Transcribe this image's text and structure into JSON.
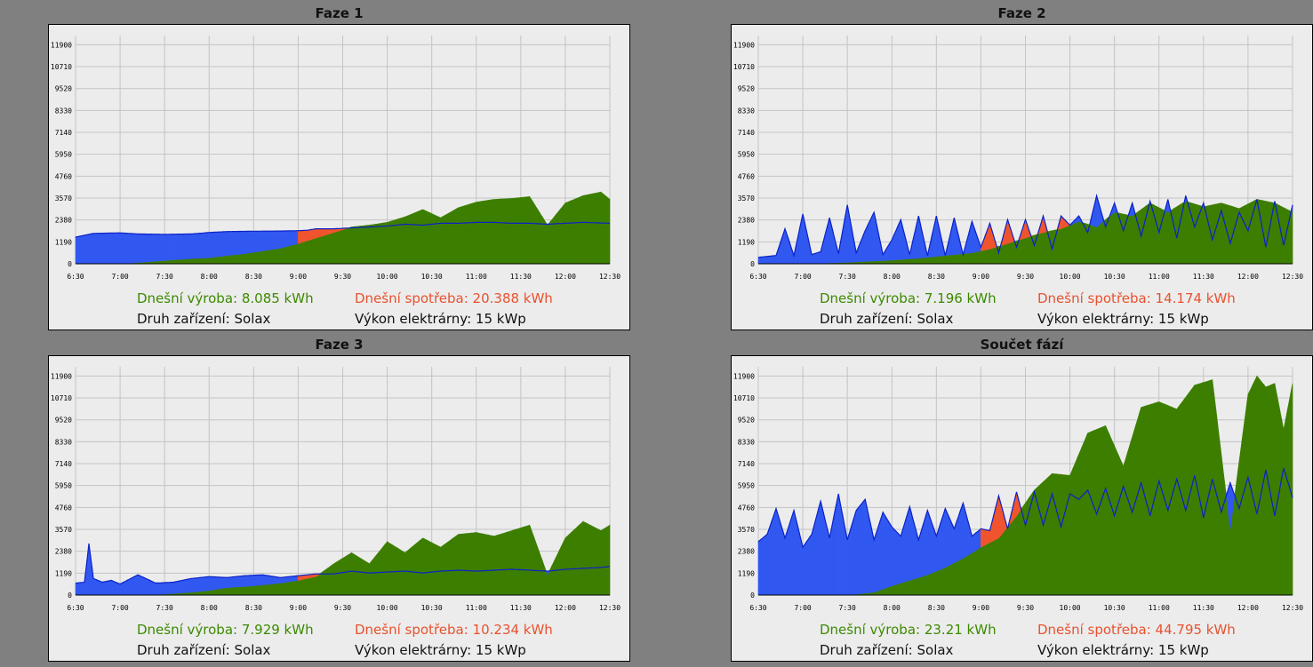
{
  "colors": {
    "production": "#3d7e00",
    "consumption": "#f0542e",
    "grid": "#3158f0",
    "consumption_line": "#d41400",
    "grid_line": "#0b22c8"
  },
  "panels": [
    {
      "title": "Faze 1",
      "production_label": "Dnešní výroba: 8.085 kWh",
      "consumption_label": "Dnešní spotřeba: 20.388 kWh",
      "device_label": "Druh zařízení: Solax",
      "power_label": "Výkon elektrárny: 15 kWp"
    },
    {
      "title": "Faze 2",
      "production_label": "Dnešní výroba: 7.196 kWh",
      "consumption_label": "Dnešní spotřeba: 14.174 kWh",
      "device_label": "Druh zařízení: Solax",
      "power_label": "Výkon elektrárny: 15 kWp"
    },
    {
      "title": "Faze 3",
      "production_label": "Dnešní výroba: 7.929 kWh",
      "consumption_label": "Dnešní spotřeba: 10.234 kWh",
      "device_label": "Druh zařízení: Solax",
      "power_label": "Výkon elektrárny: 15 kWp"
    },
    {
      "title": "Součet fází",
      "production_label": "Dnešní výroba: 23.21 kWh",
      "consumption_label": "Dnešní spotřeba: 44.795 kWh",
      "device_label": "Druh zařízení: Solax",
      "power_label": "Výkon elektrárny: 15 kWp"
    }
  ],
  "chart_data": [
    {
      "type": "area",
      "x_ticks": [
        "6:30",
        "7:00",
        "7:30",
        "8:00",
        "8:30",
        "9:00",
        "9:30",
        "10:00",
        "10:30",
        "11:00",
        "11:30",
        "12:00",
        "12:30"
      ],
      "y_ticks": [
        0,
        1190,
        2380,
        3570,
        4760,
        5950,
        7140,
        8330,
        9520,
        10710,
        11900
      ],
      "ylim": [
        0,
        12400
      ],
      "x_range_hours": [
        6.5,
        12.5
      ],
      "series": [
        {
          "role": "consumption",
          "x": [
            6.5,
            6.7,
            7.0,
            7.2,
            7.5,
            7.8,
            8.0,
            8.2,
            8.5,
            8.8,
            9.0,
            9.1,
            9.2,
            9.4,
            9.6,
            9.8,
            10.0,
            10.2,
            10.4,
            10.6,
            10.8,
            11.0,
            11.2,
            11.4,
            11.6,
            11.8,
            12.0,
            12.2,
            12.5
          ],
          "y": [
            1450,
            1650,
            1680,
            1620,
            1600,
            1620,
            1700,
            1750,
            1770,
            1780,
            1800,
            1820,
            1900,
            1900,
            1950,
            2000,
            2050,
            2150,
            2100,
            2200,
            2200,
            2250,
            2250,
            2200,
            2200,
            2150,
            2200,
            2250,
            2200
          ]
        },
        {
          "role": "production",
          "x": [
            6.5,
            7.0,
            7.3,
            7.6,
            8.0,
            8.2,
            8.4,
            8.6,
            8.8,
            9.0,
            9.2,
            9.4,
            9.6,
            9.8,
            10.0,
            10.2,
            10.4,
            10.6,
            10.8,
            11.0,
            11.2,
            11.4,
            11.6,
            11.8,
            12.0,
            12.2,
            12.4,
            12.5
          ],
          "y": [
            0,
            0,
            100,
            220,
            330,
            450,
            550,
            700,
            850,
            1100,
            1400,
            1700,
            2000,
            2100,
            2250,
            2550,
            2950,
            2500,
            3050,
            3350,
            3500,
            3550,
            3650,
            2100,
            3300,
            3700,
            3900,
            3500
          ]
        }
      ]
    },
    {
      "type": "area",
      "x_ticks": [
        "6:30",
        "7:00",
        "7:30",
        "8:00",
        "8:30",
        "9:00",
        "9:30",
        "10:00",
        "10:30",
        "11:00",
        "11:30",
        "12:00",
        "12:30"
      ],
      "y_ticks": [
        0,
        1190,
        2380,
        3570,
        4760,
        5950,
        7140,
        8330,
        9520,
        10710,
        11900
      ],
      "ylim": [
        0,
        12400
      ],
      "x_range_hours": [
        6.5,
        12.5
      ],
      "series": [
        {
          "role": "consumption",
          "x": [
            6.5,
            6.7,
            6.8,
            6.9,
            7.0,
            7.1,
            7.2,
            7.3,
            7.4,
            7.5,
            7.6,
            7.7,
            7.8,
            7.9,
            8.0,
            8.1,
            8.2,
            8.3,
            8.4,
            8.5,
            8.6,
            8.7,
            8.8,
            8.9,
            9.0,
            9.1,
            9.2,
            9.3,
            9.4,
            9.5,
            9.6,
            9.7,
            9.8,
            9.9,
            10.0,
            10.1,
            10.2,
            10.3,
            10.4,
            10.5,
            10.6,
            10.7,
            10.8,
            10.9,
            11.0,
            11.1,
            11.2,
            11.3,
            11.4,
            11.5,
            11.6,
            11.7,
            11.8,
            11.9,
            12.0,
            12.1,
            12.2,
            12.3,
            12.4,
            12.5
          ],
          "y": [
            350,
            450,
            1900,
            450,
            2700,
            500,
            650,
            2500,
            550,
            3200,
            600,
            1800,
            2800,
            500,
            1300,
            2400,
            500,
            2600,
            450,
            2600,
            450,
            2500,
            500,
            2300,
            900,
            2200,
            600,
            2400,
            900,
            2400,
            1000,
            2600,
            800,
            2600,
            2100,
            2600,
            1700,
            3700,
            2000,
            3300,
            1800,
            3300,
            1500,
            3400,
            1700,
            3500,
            1400,
            3700,
            2000,
            3300,
            1300,
            2900,
            1100,
            2800,
            1800,
            3500,
            900,
            3400,
            1000,
            3200
          ]
        },
        {
          "role": "production",
          "x": [
            6.5,
            7.0,
            7.5,
            8.0,
            8.3,
            8.6,
            8.9,
            9.1,
            9.3,
            9.5,
            9.7,
            9.9,
            10.1,
            10.3,
            10.5,
            10.7,
            10.9,
            11.1,
            11.3,
            11.5,
            11.7,
            11.9,
            12.1,
            12.3,
            12.5
          ],
          "y": [
            0,
            0,
            80,
            200,
            300,
            450,
            600,
            800,
            1100,
            1400,
            1700,
            1900,
            2300,
            2000,
            2800,
            2600,
            3300,
            2800,
            3400,
            3100,
            3300,
            3000,
            3500,
            3300,
            2800
          ]
        }
      ]
    },
    {
      "type": "area",
      "x_ticks": [
        "6:30",
        "7:00",
        "7:30",
        "8:00",
        "8:30",
        "9:00",
        "9:30",
        "10:00",
        "10:30",
        "11:00",
        "11:30",
        "12:00",
        "12:30"
      ],
      "y_ticks": [
        0,
        1190,
        2380,
        3570,
        4760,
        5950,
        7140,
        8330,
        9520,
        10710,
        11900
      ],
      "ylim": [
        0,
        12400
      ],
      "x_range_hours": [
        6.5,
        12.5
      ],
      "series": [
        {
          "role": "consumption",
          "x": [
            6.5,
            6.6,
            6.65,
            6.7,
            6.8,
            6.9,
            7.0,
            7.2,
            7.4,
            7.6,
            7.8,
            8.0,
            8.2,
            8.4,
            8.6,
            8.8,
            9.0,
            9.2,
            9.4,
            9.6,
            9.8,
            10.0,
            10.2,
            10.4,
            10.6,
            10.8,
            11.0,
            11.2,
            11.4,
            11.6,
            11.8,
            12.0,
            12.2,
            12.4,
            12.5
          ],
          "y": [
            650,
            700,
            2800,
            900,
            700,
            800,
            600,
            1100,
            650,
            700,
            900,
            1000,
            950,
            1050,
            1100,
            950,
            1050,
            1150,
            1150,
            1300,
            1200,
            1250,
            1300,
            1200,
            1300,
            1350,
            1300,
            1350,
            1400,
            1350,
            1300,
            1400,
            1450,
            1500,
            1550
          ]
        },
        {
          "role": "production",
          "x": [
            6.5,
            7.0,
            7.5,
            7.8,
            8.0,
            8.2,
            8.5,
            8.8,
            9.0,
            9.2,
            9.4,
            9.6,
            9.8,
            10.0,
            10.2,
            10.4,
            10.6,
            10.8,
            11.0,
            11.2,
            11.4,
            11.6,
            11.8,
            12.0,
            12.2,
            12.4,
            12.5
          ],
          "y": [
            0,
            0,
            50,
            150,
            250,
            400,
            500,
            650,
            800,
            1000,
            1700,
            2300,
            1700,
            2900,
            2300,
            3100,
            2600,
            3300,
            3400,
            3200,
            3500,
            3800,
            1100,
            3100,
            4000,
            3500,
            3800
          ]
        }
      ]
    },
    {
      "type": "area",
      "x_ticks": [
        "6:30",
        "7:00",
        "7:30",
        "8:00",
        "8:30",
        "9:00",
        "9:30",
        "10:00",
        "10:30",
        "11:00",
        "11:30",
        "12:00",
        "12:30"
      ],
      "y_ticks": [
        0,
        1190,
        2380,
        3570,
        4760,
        5950,
        7140,
        8330,
        9520,
        10710,
        11900
      ],
      "ylim": [
        0,
        12400
      ],
      "x_range_hours": [
        6.5,
        12.5
      ],
      "series": [
        {
          "role": "consumption",
          "x": [
            6.5,
            6.6,
            6.7,
            6.8,
            6.9,
            7.0,
            7.1,
            7.2,
            7.3,
            7.4,
            7.5,
            7.6,
            7.7,
            7.8,
            7.9,
            8.0,
            8.1,
            8.2,
            8.3,
            8.4,
            8.5,
            8.6,
            8.7,
            8.8,
            8.9,
            9.0,
            9.1,
            9.2,
            9.3,
            9.4,
            9.5,
            9.6,
            9.7,
            9.8,
            9.9,
            10.0,
            10.1,
            10.2,
            10.3,
            10.4,
            10.5,
            10.6,
            10.7,
            10.8,
            10.9,
            11.0,
            11.1,
            11.2,
            11.3,
            11.4,
            11.5,
            11.6,
            11.7,
            11.8,
            11.9,
            12.0,
            12.1,
            12.2,
            12.3,
            12.4,
            12.5
          ],
          "y": [
            2900,
            3300,
            4700,
            3100,
            4600,
            2600,
            3300,
            5100,
            3100,
            5500,
            3000,
            4600,
            5200,
            3000,
            4500,
            3700,
            3200,
            4800,
            3000,
            4600,
            3200,
            4700,
            3600,
            5000,
            3200,
            3600,
            3500,
            5400,
            3600,
            5600,
            3800,
            5600,
            3800,
            5500,
            3700,
            5500,
            5200,
            5700,
            4400,
            5800,
            4300,
            5900,
            4500,
            6100,
            4300,
            6200,
            4600,
            6300,
            4600,
            6500,
            4200,
            6300,
            4500,
            6100,
            4700,
            6400,
            4400,
            6800,
            4300,
            6900,
            5300
          ]
        },
        {
          "role": "production",
          "x": [
            6.5,
            7.0,
            7.5,
            7.8,
            8.0,
            8.2,
            8.4,
            8.6,
            8.8,
            9.0,
            9.2,
            9.4,
            9.6,
            9.8,
            10.0,
            10.2,
            10.4,
            10.6,
            10.8,
            11.0,
            11.2,
            11.4,
            11.6,
            11.8,
            12.0,
            12.1,
            12.2,
            12.3,
            12.4,
            12.5
          ],
          "y": [
            0,
            0,
            0,
            150,
            500,
            800,
            1100,
            1500,
            2000,
            2600,
            3100,
            4300,
            5700,
            6600,
            6500,
            8800,
            9200,
            7000,
            10200,
            10500,
            10100,
            11400,
            11700,
            3600,
            10900,
            11900,
            11300,
            11500,
            9000,
            11500
          ]
        }
      ]
    }
  ]
}
